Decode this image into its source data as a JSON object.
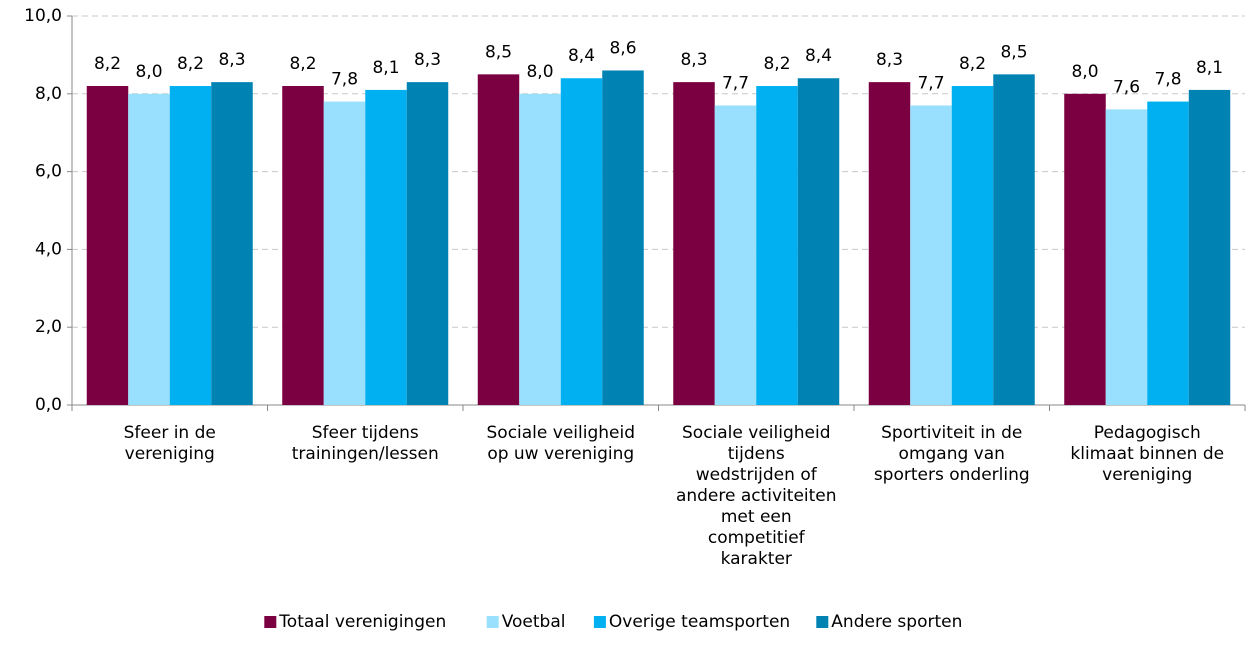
{
  "chart_data": {
    "type": "bar",
    "categories": [
      "Sfeer in de\nvereniging",
      "Sfeer tijdens\ntrainingen/lessen",
      "Sociale veiligheid\nop uw vereniging",
      "Sociale veiligheid\ntijdens\nwedstrijden of\nandere activiteiten\nmet een\ncompetitief\nkarakter",
      "Sportiviteit in de\nomgang van\nsporters onderling",
      "Pedagogisch\nklimaat  binnen de\nvereniging"
    ],
    "series": [
      {
        "name": "Totaal verenigingen",
        "color": "#7b0041",
        "values": [
          8.2,
          8.2,
          8.5,
          8.3,
          8.3,
          8.0
        ],
        "value_labels": [
          "8,2",
          "8,2",
          "8,5",
          "8,3",
          "8,3",
          "8,0"
        ]
      },
      {
        "name": "Voetbal",
        "color": "#99e0fe",
        "values": [
          8.0,
          7.8,
          8.0,
          7.7,
          7.7,
          7.6
        ],
        "value_labels": [
          "8,0",
          "7,8",
          "8,0",
          "7,7",
          "7,7",
          "7,6"
        ]
      },
      {
        "name": "Overige teamsporten",
        "color": "#00b0f0",
        "values": [
          8.2,
          8.1,
          8.4,
          8.2,
          8.2,
          7.8
        ],
        "value_labels": [
          "8,2",
          "8,1",
          "8,4",
          "8,2",
          "8,2",
          "7,8"
        ]
      },
      {
        "name": "Andere sporten",
        "color": "#0083b3",
        "values": [
          8.3,
          8.3,
          8.6,
          8.4,
          8.5,
          8.1
        ],
        "value_labels": [
          "8,3",
          "8,3",
          "8,6",
          "8,4",
          "8,5",
          "8,1"
        ]
      }
    ],
    "ylim": [
      0,
      10
    ],
    "yticks": [
      {
        "value": 0,
        "label": "0,0"
      },
      {
        "value": 2,
        "label": "2,0"
      },
      {
        "value": 4,
        "label": "4,0"
      },
      {
        "value": 6,
        "label": "6,0"
      },
      {
        "value": 8,
        "label": "8,0"
      },
      {
        "value": 10,
        "label": "10,0"
      }
    ],
    "grid": true,
    "legend": "bottom"
  }
}
